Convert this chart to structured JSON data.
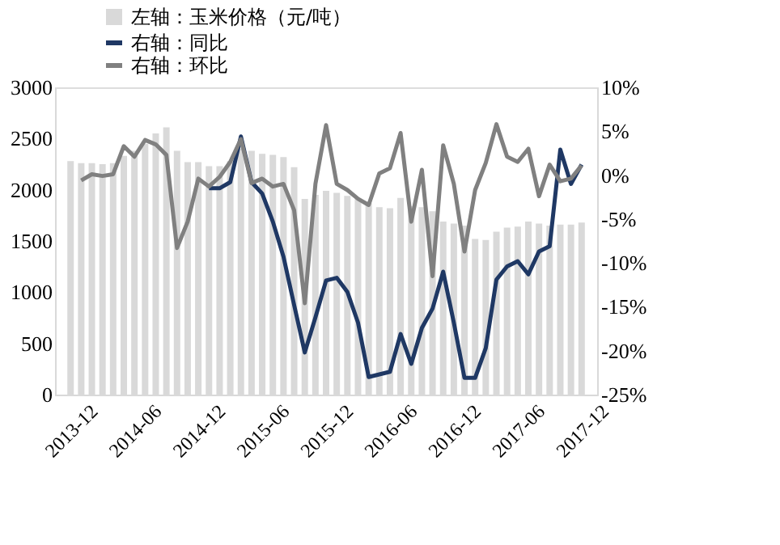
{
  "chart_data": {
    "type": "bar",
    "categories": [
      "2013-12",
      null,
      null,
      null,
      null,
      null,
      "2014-06",
      null,
      null,
      null,
      null,
      null,
      "2014-12",
      null,
      null,
      null,
      null,
      null,
      "2015-06",
      null,
      null,
      null,
      null,
      null,
      "2015-12",
      null,
      null,
      null,
      null,
      null,
      "2016-06",
      null,
      null,
      null,
      null,
      null,
      "2016-12",
      null,
      null,
      null,
      null,
      null,
      "2017-06",
      null,
      null,
      null,
      null,
      null,
      "2017-12"
    ],
    "series": [
      {
        "name": "左轴：玉米价格（元/吨）",
        "color": "#d9d9d9",
        "values": [
          2280,
          2260,
          2260,
          2250,
          2260,
          2330,
          2380,
          2450,
          2550,
          2610,
          2380,
          2270,
          2270,
          2230,
          2230,
          2280,
          2400,
          2380,
          2350,
          2340,
          2320,
          2220,
          1910,
          1950,
          1990,
          1970,
          1940,
          1910,
          1870,
          1830,
          1820,
          1920,
          1840,
          1830,
          1790,
          1690,
          1670,
          1650,
          1520,
          1510,
          1590,
          1630,
          1640,
          1690,
          1670,
          1650,
          1660,
          1660,
          1680
        ]
      },
      {
        "name": "右轴：同比",
        "type": "line",
        "axis": "y2",
        "color": "#1f3864",
        "values": [
          null,
          null,
          null,
          null,
          null,
          null,
          null,
          null,
          null,
          null,
          null,
          null,
          null,
          -1.5,
          -1.5,
          -0.8,
          4.4,
          -0.8,
          -2.1,
          -5.3,
          -9.3,
          -14.8,
          -20.2,
          -16.2,
          -12.0,
          -11.7,
          -13.3,
          -16.8,
          -23.0,
          -22.7,
          -22.4,
          -18.1,
          -21.5,
          -17.4,
          -15.2,
          -11.0,
          -16.8,
          -23.1,
          -23.1,
          -19.7,
          -11.9,
          -10.4,
          -9.8,
          -11.3,
          -8.7,
          -8.1,
          2.9,
          -1.0,
          1.2
        ]
      },
      {
        "name": "右轴：环比",
        "type": "line",
        "axis": "y2",
        "color": "#808080",
        "values": [
          null,
          -0.6,
          0.1,
          -0.1,
          0.1,
          3.3,
          2.1,
          4.0,
          3.5,
          2.3,
          -8.3,
          -5.3,
          -0.4,
          -1.3,
          -0.2,
          1.5,
          4.1,
          -0.9,
          -0.4,
          -1.3,
          -1.0,
          -4.0,
          -14.6,
          -1.0,
          5.7,
          -1.0,
          -1.7,
          -2.7,
          -3.4,
          0.2,
          0.8,
          4.8,
          -5.3,
          0.6,
          -11.5,
          3.4,
          -1.0,
          -8.7,
          -1.7,
          1.4,
          5.8,
          2.1,
          1.5,
          3.0,
          -2.4,
          1.2,
          -0.7,
          -0.4,
          1.1
        ]
      }
    ],
    "ylim": [
      0,
      3000
    ],
    "yticks": [
      0,
      500,
      1000,
      1500,
      2000,
      2500,
      3000
    ],
    "y2lim": [
      -25,
      10
    ],
    "y2ticks": [
      {
        "value": -25,
        "label": "-25%"
      },
      {
        "value": -20,
        "label": "-20%"
      },
      {
        "value": -15,
        "label": "-15%"
      },
      {
        "value": -10,
        "label": "-10%"
      },
      {
        "value": -5,
        "label": "-5%"
      },
      {
        "value": 0,
        "label": "0%"
      },
      {
        "value": 5,
        "label": "5%"
      },
      {
        "value": 10,
        "label": "10%"
      }
    ],
    "grid": false,
    "legend": "top left"
  }
}
